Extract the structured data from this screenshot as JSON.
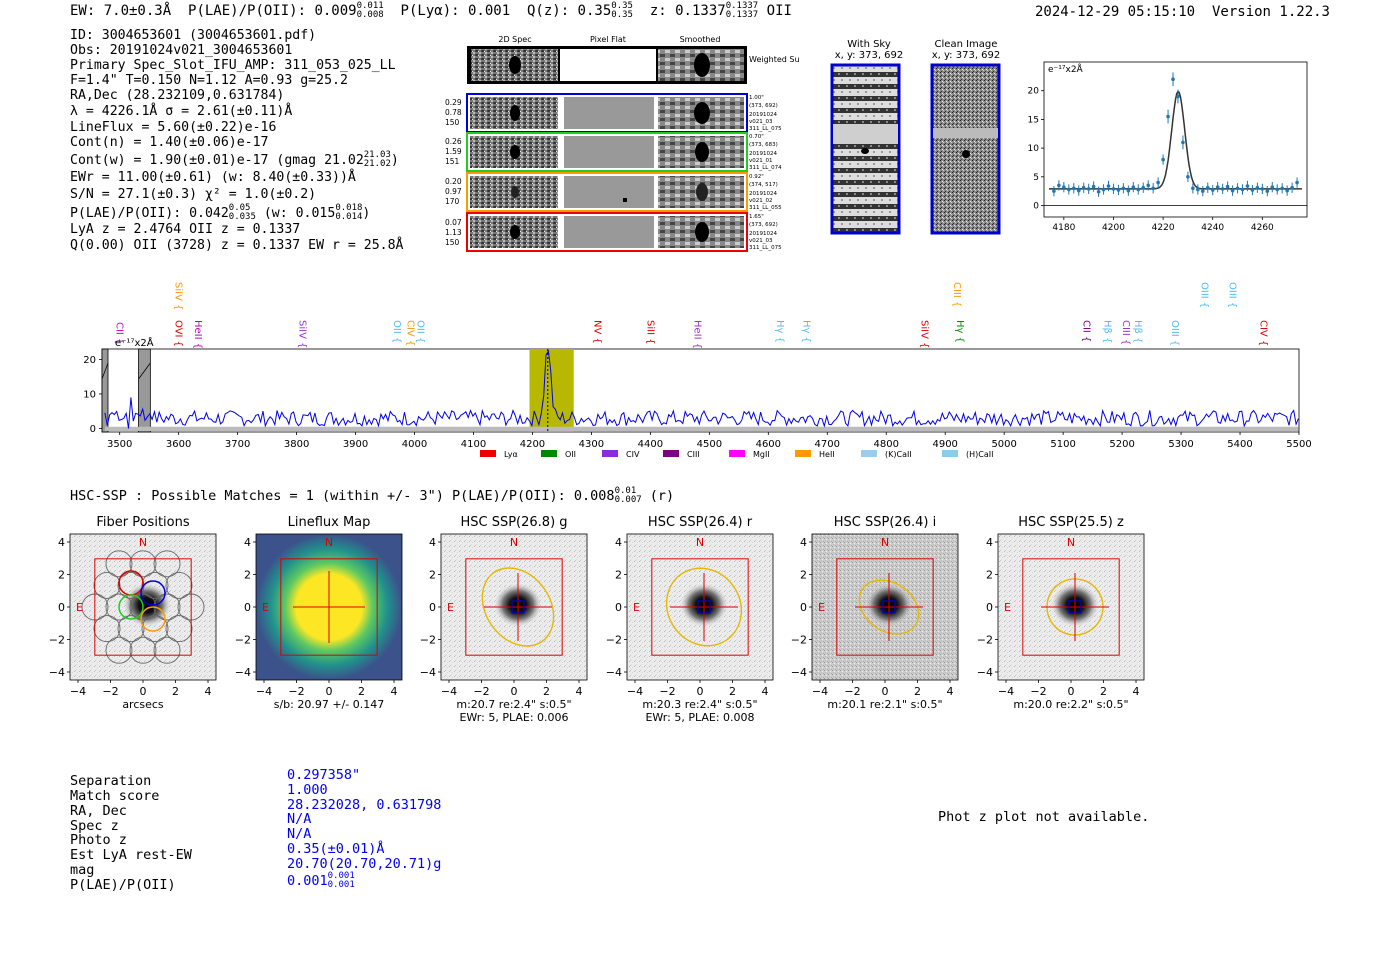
{
  "header": {
    "ew": "EW: 7.0±0.3Å",
    "plae_label": "P(LAE)/P(OII): 0.009",
    "plae_hi": "0.011",
    "plae_lo": "0.008",
    "plya": "P(Lyα): 0.001",
    "qz_label": "Q(z): 0.35",
    "qz_hi": "0.35",
    "qz_lo": "0.35",
    "z_label": "z: 0.1337",
    "z_hi": "0.1337",
    "z_lo": "0.1337",
    "z_line": "OII",
    "timestamp": "2024-12-29 05:15:10",
    "version": "Version 1.22.3"
  },
  "info": {
    "id": "ID: 3004653601 (3004653601.pdf)",
    "obs": "Obs: 20191024v021_3004653601",
    "primary": "Primary Spec_Slot_IFU_AMP: 311_053_025_LL",
    "fwhm": "F=1.4\"  T=0.150  N=1.12  A=0.93  g=25.2",
    "radec": "RA,Dec (28.232109,0.631784)",
    "lambda": "λ = 4226.1Å   σ = 2.61(±0.11)Å",
    "lineflux": "LineFlux = 5.60(±0.22)e-16",
    "cont_n": "Cont(n) = 1.40(±0.06)e-17",
    "cont_w": "Cont(w) = 1.90(±0.01)e-17 (gmag 21.02",
    "cont_w_hi": "21.03",
    "cont_w_lo": "21.02",
    "cont_w_end": ")",
    "ewr": "EWr = 11.00(±0.61) (w: 8.40(±0.33))Å",
    "sn": "S/N = 27.1(±0.3)  χ² = 1.0(±0.2)",
    "plae": "P(LAE)/P(OII): 0.042",
    "plae_hi": "0.05",
    "plae_lo": "0.035",
    "plae_w": "(w: 0.015",
    "plae_w_hi": "0.018",
    "plae_w_lo": "0.014",
    "plae_w_end": ")",
    "lya_z": "LyA z = 2.4764  OII z = 0.1337",
    "q": "Q(0.00) OII (3728) z = 0.1337  EW r = 25.8Å"
  },
  "spec_cutouts": {
    "col_titles": [
      "2D Spec",
      "Pixel Flat",
      "Smoothed"
    ],
    "weighted_sum": "Weighted Sum",
    "rows": [
      {
        "left": [
          "0.29",
          "0.78",
          "150"
        ],
        "right": [
          "1.00\"",
          "(373, 692)",
          "20191024",
          "v021_03",
          "311_LL_075"
        ],
        "color": "#0000dd"
      },
      {
        "left": [
          "0.26",
          "1.59",
          "151"
        ],
        "right": [
          "0.70\"",
          "(373, 683)",
          "20191024",
          "v021_01",
          "311_LL_074"
        ],
        "color": "#22cc22"
      },
      {
        "left": [
          "0.20",
          "0.97",
          "170"
        ],
        "right": [
          "0.92\"",
          "(374, 517)",
          "20191024",
          "v021_02",
          "311_LL_055"
        ],
        "color": "#ff9900"
      },
      {
        "left": [
          "0.07",
          "1.13",
          "150"
        ],
        "right": [
          "1.65\"",
          "(373, 692)",
          "20191024",
          "v021_03",
          "311_LL_075"
        ],
        "color": "#ee0000"
      }
    ]
  },
  "sky_cutouts": {
    "with_sky_title": "With Sky",
    "with_sky_xy": "x, y: 373, 692",
    "clean_title": "Clean Image",
    "clean_xy": "x, y: 373, 692"
  },
  "line_fit": {
    "unit_label": "e⁻¹⁷x2Å",
    "chart_data": {
      "type": "scatter",
      "x": [
        4176,
        4178,
        4180,
        4182,
        4184,
        4186,
        4188,
        4190,
        4192,
        4194,
        4196,
        4198,
        4200,
        4202,
        4204,
        4206,
        4208,
        4210,
        4212,
        4214,
        4216,
        4218,
        4220,
        4222,
        4224,
        4226,
        4228,
        4230,
        4232,
        4234,
        4236,
        4238,
        4240,
        4242,
        4244,
        4246,
        4248,
        4250,
        4252,
        4254,
        4256,
        4258,
        4260,
        4262,
        4264,
        4266,
        4268,
        4270,
        4272,
        4274
      ],
      "y": [
        2.5,
        3.5,
        3.2,
        2.8,
        3.0,
        2.6,
        3.1,
        2.9,
        3.3,
        2.4,
        2.8,
        3.4,
        2.9,
        2.7,
        3.0,
        2.6,
        3.2,
        2.8,
        3.1,
        3.5,
        3.0,
        4.0,
        8.0,
        15.5,
        22.0,
        19.0,
        11.0,
        5.0,
        3.0,
        2.8,
        2.5,
        3.1,
        2.7,
        3.2,
        2.9,
        3.3,
        2.6,
        3.0,
        2.8,
        3.4,
        2.7,
        3.1,
        2.9,
        2.5,
        3.2,
        2.8,
        3.0,
        2.6,
        3.1,
        4.0
      ],
      "fit_center": 4226.1,
      "fit_sigma": 2.61,
      "fit_amp": 17.0,
      "fit_cont": 2.9,
      "xlim": [
        4172,
        4278
      ],
      "ylim": [
        -2,
        25
      ],
      "xticks": [
        4180,
        4200,
        4220,
        4240,
        4260
      ],
      "yticks": [
        0,
        5,
        10,
        15,
        20
      ]
    }
  },
  "full_spectrum": {
    "unit_label": "e⁻¹⁷x2Å",
    "chart_data": {
      "type": "line",
      "xlim": [
        3470,
        5500
      ],
      "ylim": [
        -1,
        23
      ],
      "xticks": [
        3500,
        3600,
        3700,
        3800,
        3900,
        4000,
        4100,
        4200,
        4300,
        4400,
        4500,
        4600,
        4700,
        4800,
        4900,
        5000,
        5100,
        5200,
        5300,
        5400,
        5500
      ],
      "yticks": [
        0,
        10,
        20
      ],
      "peak_wavelength": 4226,
      "peak_value": 21,
      "continuum_level": 3,
      "highlight_range": [
        4195,
        4270
      ],
      "masked_ranges": [
        [
          3532,
          3552
        ],
        [
          3462,
          3474
        ]
      ],
      "lines": [
        {
          "name": "CII",
          "wave": 3500,
          "color": "#cc00cc",
          "tier": 2
        },
        {
          "name": "SiIV",
          "wave": 3600,
          "color": "#ff9900",
          "tier": 0
        },
        {
          "name": "OVI",
          "wave": 3600,
          "color": "#dd0000",
          "tier": 1
        },
        {
          "name": "HeII",
          "wave": 3633,
          "color": "#bb00bb",
          "tier": 1
        },
        {
          "name": "SiIV",
          "wave": 3810,
          "color": "#9933cc",
          "tier": 1
        },
        {
          "name": "OII",
          "wave": 3970,
          "color": "#55bbee",
          "tier": 1
        },
        {
          "name": "CIV",
          "wave": 3993,
          "color": "#ff9900",
          "tier": 1
        },
        {
          "name": "OII",
          "wave": 4010,
          "color": "#55bbee",
          "tier": 1
        },
        {
          "name": "NV",
          "wave": 4310,
          "color": "#dd0000",
          "tier": 1
        },
        {
          "name": "SiII",
          "wave": 4400,
          "color": "#dd0000",
          "tier": 1
        },
        {
          "name": "HeII",
          "wave": 4480,
          "color": "#9933cc",
          "tier": 1
        },
        {
          "name": "Hγ",
          "wave": 4620,
          "color": "#55bbee",
          "tier": 1
        },
        {
          "name": "Hγ",
          "wave": 4665,
          "color": "#55bbee",
          "tier": 1
        },
        {
          "name": "SiIV",
          "wave": 4865,
          "color": "#dd0000",
          "tier": 1
        },
        {
          "name": "CIII",
          "wave": 4920,
          "color": "#ff9900",
          "tier": 0
        },
        {
          "name": "Hγ",
          "wave": 4925,
          "color": "#008800",
          "tier": 1
        },
        {
          "name": "CII",
          "wave": 5140,
          "color": "#770077",
          "tier": 1
        },
        {
          "name": "Hβ",
          "wave": 5175,
          "color": "#55bbee",
          "tier": 1
        },
        {
          "name": "CIII",
          "wave": 5207,
          "color": "#9933cc",
          "tier": 1
        },
        {
          "name": "Hβ",
          "wave": 5227,
          "color": "#55bbee",
          "tier": 1
        },
        {
          "name": "OIII",
          "wave": 5290,
          "color": "#55bbee",
          "tier": 1
        },
        {
          "name": "OIII",
          "wave": 5340,
          "color": "#55bbee",
          "tier": 0
        },
        {
          "name": "OIII",
          "wave": 5387,
          "color": "#55bbee",
          "tier": 0
        },
        {
          "name": "CIV",
          "wave": 5440,
          "color": "#dd0000",
          "tier": 1
        }
      ],
      "legend": [
        {
          "name": "Lyα",
          "color": "#ee0000"
        },
        {
          "name": "OII",
          "color": "#008800"
        },
        {
          "name": "CIV",
          "color": "#8a2be2"
        },
        {
          "name": "CIII",
          "color": "#800080"
        },
        {
          "name": "MgII",
          "color": "#ff00ff"
        },
        {
          "name": "HeII",
          "color": "#ff9900"
        },
        {
          "name": "(K)CaII",
          "color": "#99ccee"
        },
        {
          "name": "(H)CaII",
          "color": "#87ceeb"
        }
      ]
    }
  },
  "hsc": {
    "title": "HSC-SSP : Possible Matches = 1 (within +/- 3\")  P(LAE)/P(OII): 0.008",
    "title_hi": "0.01",
    "title_lo": "0.007",
    "title_band": "(r)",
    "panels": [
      {
        "title": "Fiber Positions",
        "sub1": "arcsecs",
        "sub2": ""
      },
      {
        "title": "Lineflux Map",
        "sub1": "s/b: 20.97 +/- 0.147",
        "sub2": ""
      },
      {
        "title": "HSC SSP(26.8) g",
        "sub1": "m:20.7  re:2.4\"  s:0.5\"",
        "sub2": "EWr: 5, PLAE: 0.006"
      },
      {
        "title": "HSC SSP(26.4) r",
        "sub1": "m:20.3  re:2.4\"  s:0.5\"",
        "sub2": "EWr: 5, PLAE: 0.008"
      },
      {
        "title": "HSC SSP(26.4) i",
        "sub1": "m:20.1  re:2.1\"  s:0.5\"",
        "sub2": ""
      },
      {
        "title": "HSC SSP(25.5) z",
        "sub1": "m:20.0  re:2.2\"  s:0.5\"",
        "sub2": ""
      }
    ],
    "tick_labels": [
      "4",
      "2",
      "0",
      "−2",
      "−4"
    ],
    "xtick_labels": [
      "−4",
      "−2",
      "0",
      "2",
      "4"
    ],
    "compass_n": "N",
    "compass_e": "E"
  },
  "match": {
    "labels": [
      "Separation",
      "Match score",
      "RA, Dec",
      "Spec z",
      "Photo z",
      "Est LyA rest-EW",
      "mag",
      "P(LAE)/P(OII)"
    ],
    "values": [
      "0.297358\"",
      "1.000",
      "28.232028, 0.631798",
      "N/A",
      "N/A",
      "0.35(±0.01)Å",
      "20.70(20.70,20.71)g",
      "0.001"
    ],
    "plae_hi": "0.001",
    "plae_lo": "0.001",
    "photz_msg": "Phot z plot not available."
  }
}
